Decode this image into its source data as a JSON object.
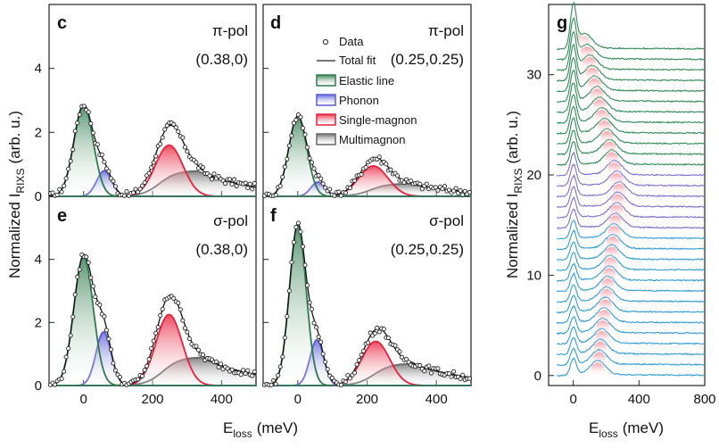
{
  "colors": {
    "elastic": "#2f7a4d",
    "elastic_fill": "#3f8a5a",
    "phonon": "#5a5ad6",
    "phonon_fill": "#7d7de6",
    "magnon": "#e8203c",
    "magnon_fill": "#f0506a",
    "multi": "#666666",
    "multi_fill": "#8c8c8c",
    "stack_green": "#2e8b57",
    "stack_purple": "#7a6fd0",
    "stack_blue": "#2f9bd9",
    "stack_peak": "#f08080"
  },
  "shared": {
    "xlabel_main": "E",
    "xlabel_sub": "loss",
    "xlabel_unit": "(meV)",
    "ylabel_main": "Normalized I",
    "ylabel_sub": "RIXS",
    "ylabel_unit": "(arb. u.)"
  },
  "legend": {
    "data": "Data",
    "total_fit": "Total fit",
    "elastic": "Elastic line",
    "phonon": "Phonon",
    "magnon": "Single-magnon",
    "multi": "Multimagnon"
  },
  "chart_data": [
    {
      "panel": "c",
      "type": "line",
      "pol": "π-pol",
      "q": "(0.38,0)",
      "xlim": [
        -100,
        500
      ],
      "ylim": [
        0,
        6
      ],
      "xticks": [
        0,
        200,
        400
      ],
      "yticks": [
        0,
        2,
        4
      ],
      "components": {
        "elastic": {
          "center": 0,
          "height": 2.85,
          "width": 28
        },
        "phonon": {
          "center": 60,
          "height": 0.8,
          "width": 22
        },
        "magnon": {
          "center": 248,
          "height": 1.6,
          "width": 40
        },
        "multi": {
          "center": 330,
          "height": 0.8,
          "width": 120
        }
      }
    },
    {
      "panel": "d",
      "type": "line",
      "pol": "π-pol",
      "q": "(0.25,0.25)",
      "xlim": [
        -100,
        500
      ],
      "ylim": [
        0,
        6
      ],
      "xticks": [
        0,
        200,
        400
      ],
      "yticks": [
        0,
        2,
        4
      ],
      "components": {
        "elastic": {
          "center": 0,
          "height": 2.5,
          "width": 26
        },
        "phonon": {
          "center": 58,
          "height": 0.45,
          "width": 20
        },
        "magnon": {
          "center": 218,
          "height": 0.95,
          "width": 42
        },
        "multi": {
          "center": 320,
          "height": 0.4,
          "width": 120
        }
      }
    },
    {
      "panel": "e",
      "type": "line",
      "pol": "σ-pol",
      "q": "(0.38,0)",
      "xlim": [
        -100,
        500
      ],
      "ylim": [
        0,
        6
      ],
      "xticks": [
        0,
        200,
        400
      ],
      "yticks": [
        0,
        2,
        4
      ],
      "components": {
        "elastic": {
          "center": 0,
          "height": 4.1,
          "width": 28
        },
        "phonon": {
          "center": 58,
          "height": 1.7,
          "width": 22
        },
        "magnon": {
          "center": 248,
          "height": 2.25,
          "width": 38
        },
        "multi": {
          "center": 340,
          "height": 0.9,
          "width": 120
        }
      }
    },
    {
      "panel": "f",
      "type": "line",
      "pol": "σ-pol",
      "q": "(0.25,0.25)",
      "xlim": [
        -100,
        500
      ],
      "ylim": [
        0,
        6
      ],
      "xticks": [
        0,
        200,
        400
      ],
      "yticks": [
        0,
        2,
        4
      ],
      "components": {
        "elastic": {
          "center": 0,
          "height": 5.1,
          "width": 24
        },
        "phonon": {
          "center": 55,
          "height": 1.45,
          "width": 20
        },
        "magnon": {
          "center": 225,
          "height": 1.4,
          "width": 40
        },
        "multi": {
          "center": 330,
          "height": 0.7,
          "width": 120
        }
      }
    },
    {
      "panel": "g",
      "type": "line",
      "xlim": [
        -150,
        800
      ],
      "ylim": [
        -1,
        37
      ],
      "xticks": [
        0,
        400,
        800
      ],
      "yticks": [
        0,
        10,
        20,
        30
      ],
      "spectra": 32,
      "offset_step": 1.05,
      "group_sizes": {
        "blue": 14,
        "purple": 6,
        "green": 12
      },
      "magnon_peak_energy": {
        "start": 150,
        "max": 280,
        "end": 70
      }
    }
  ]
}
